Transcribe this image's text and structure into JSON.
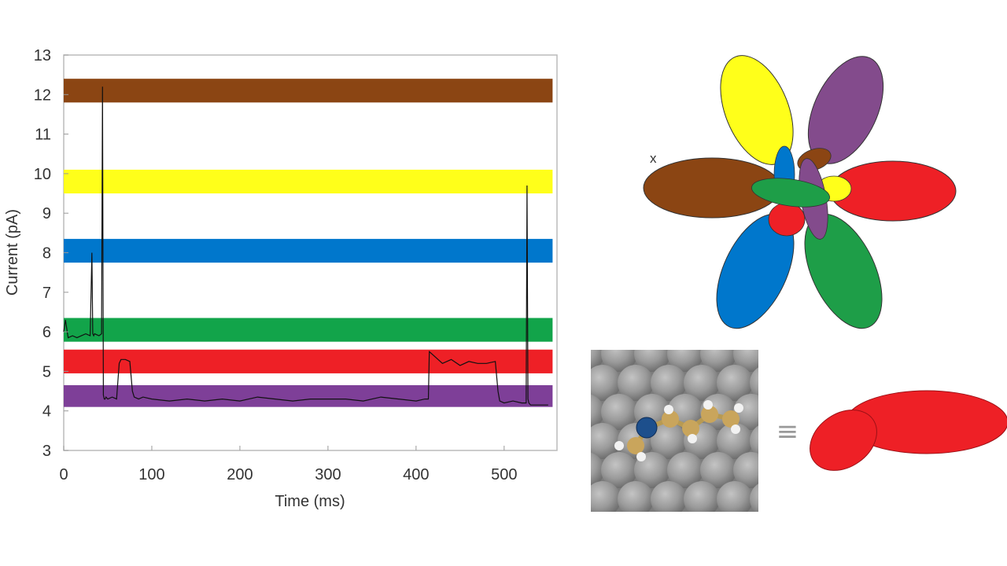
{
  "chart_data": {
    "type": "line",
    "title": "",
    "xlabel": "Time (ms)",
    "ylabel": "Current (pA)",
    "xlim": [
      0,
      560
    ],
    "ylim": [
      3,
      13
    ],
    "x_ticks": [
      0,
      100,
      200,
      300,
      400,
      500
    ],
    "y_ticks": [
      3,
      4,
      5,
      6,
      7,
      8,
      9,
      10,
      11,
      12,
      13
    ],
    "grid": false,
    "current_levels": [
      {
        "color": "#8B4513",
        "y_min": 11.8,
        "y_max": 12.4
      },
      {
        "color": "#FFFF1A",
        "y_min": 9.5,
        "y_max": 10.1
      },
      {
        "color": "#0077CC",
        "y_min": 7.75,
        "y_max": 8.35
      },
      {
        "color": "#12A44A",
        "y_min": 5.75,
        "y_max": 6.35
      },
      {
        "color": "#EE2026",
        "y_min": 4.95,
        "y_max": 5.55
      },
      {
        "color": "#7E3F98",
        "y_min": 4.1,
        "y_max": 4.65
      }
    ],
    "series": [
      {
        "color": "#111111",
        "x": [
          0,
          2,
          5,
          10,
          15,
          20,
          25,
          30,
          32,
          33,
          34,
          35,
          40,
          43,
          44,
          45,
          46,
          47,
          48,
          50,
          55,
          60,
          63,
          65,
          70,
          75,
          78,
          80,
          85,
          90,
          100,
          120,
          140,
          160,
          180,
          200,
          220,
          240,
          260,
          280,
          300,
          320,
          340,
          360,
          380,
          400,
          410,
          414,
          415,
          420,
          430,
          440,
          450,
          460,
          470,
          480,
          490,
          493,
          495,
          500,
          510,
          520,
          525,
          526,
          527,
          528,
          530,
          540,
          550
        ],
        "y": [
          6.0,
          6.3,
          5.85,
          5.9,
          5.85,
          5.9,
          5.95,
          5.9,
          8.0,
          5.95,
          5.9,
          5.95,
          5.9,
          5.95,
          12.2,
          4.4,
          4.3,
          4.3,
          4.35,
          4.3,
          4.35,
          4.3,
          5.2,
          5.3,
          5.3,
          5.25,
          4.5,
          4.35,
          4.3,
          4.35,
          4.3,
          4.25,
          4.3,
          4.25,
          4.3,
          4.25,
          4.35,
          4.3,
          4.25,
          4.3,
          4.3,
          4.3,
          4.25,
          4.35,
          4.3,
          4.25,
          4.3,
          4.3,
          5.5,
          5.4,
          5.2,
          5.3,
          5.15,
          5.25,
          5.2,
          5.2,
          5.25,
          4.5,
          4.25,
          4.2,
          4.25,
          4.2,
          4.2,
          9.7,
          4.3,
          4.2,
          4.15,
          4.15,
          4.15
        ]
      }
    ]
  },
  "orientation_label": "x",
  "equivalence_symbol": "≡"
}
